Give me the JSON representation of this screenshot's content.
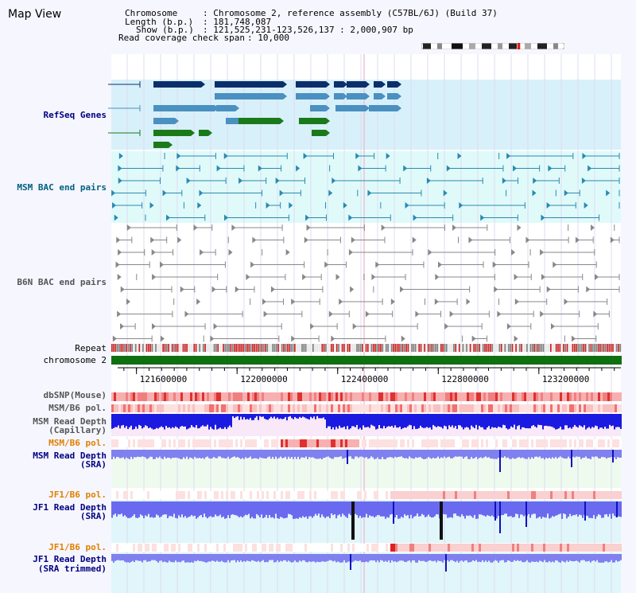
{
  "page_title": "Map View",
  "header": {
    "chromosome_key": "Chromosome",
    "chromosome_value": ": Chromosome 2, reference assembly (C57BL/6J) (Build 37)",
    "length_key": "Length (b.p.)",
    "length_value": ": 181,748,087",
    "show_key": "Show (b.p.)",
    "show_value": ": 121,525,231-123,526,137 : 2,000,907 bp",
    "coverage_key": "Read coverage check span",
    "coverage_value": ": 10,000"
  },
  "tracks": {
    "refseq": "RefSeq Genes",
    "msm_bac": "MSM BAC end pairs",
    "b6n_bac": "B6N BAC end pairs",
    "repeat": "Repeat",
    "chromosome": "chromosome 2",
    "dbsnp": "dbSNP(Mouse)",
    "msm_b6_pol_1": "MSM/B6 pol.",
    "msm_read_depth_cap_1": "MSM Read Depth",
    "msm_read_depth_cap_2": "(Capillary)",
    "msm_b6_pol_2": "MSM/B6 pol.",
    "msm_read_depth_sra_1": "MSM Read Depth",
    "msm_read_depth_sra_2": "(SRA)",
    "jf1_b6_pol_1": "JF1/B6 pol.",
    "jf1_read_depth_sra_1": "JF1 Read Depth",
    "jf1_read_depth_sra_2": "(SRA)",
    "jf1_b6_pol_2": "JF1/B6 pol.",
    "jf1_read_depth_trim_1": "JF1 Read Depth",
    "jf1_read_depth_trim_2": "(SRA trimmed)"
  },
  "axis": {
    "ticks": [
      "121600000",
      "122000000",
      "122400000",
      "122800000",
      "123200000"
    ],
    "tick_values": [
      121600000,
      122000000,
      122400000,
      122800000,
      123200000
    ],
    "view_start": 121525231,
    "view_end": 123526137
  },
  "colors": {
    "navy_label": "#000080",
    "teal_label": "#006080",
    "gray_label": "#555555",
    "orange_label": "#e08000",
    "refseq_bg": "#d8f0fa",
    "msm_bg": "#e0fafa",
    "gene_dark": "#0a2f6a",
    "gene_mid": "#4a90c0",
    "gene_green": "#1a7a1a",
    "bac_teal": "#2a8ab0",
    "bac_gray": "#888888",
    "chrom_green": "#107010",
    "depth_blue": "#2020e0",
    "depth_light": "#8080f0",
    "snp_red": "#f08080"
  }
}
